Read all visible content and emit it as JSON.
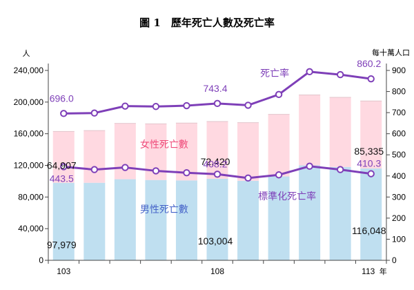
{
  "title": "圖 1　歷年死亡人數及死亡率",
  "chart_data": {
    "type": "bar",
    "categories": [
      "103",
      "",
      "",
      "",
      "",
      "108",
      "",
      "",
      "",
      "",
      "113"
    ],
    "x_tick_labels": [
      "103",
      "108",
      "113"
    ],
    "x_unit": "年",
    "y_left": {
      "unit": "人",
      "lim": [
        0,
        240000
      ],
      "ticks": [
        0,
        40000,
        80000,
        120000,
        160000,
        200000,
        240000
      ],
      "tick_labels": [
        "0",
        "40,000",
        "80,000",
        "120,000",
        "160,000",
        "200,000",
        "240,000"
      ]
    },
    "y_right": {
      "unit": "每十萬人口",
      "lim": [
        0,
        900
      ],
      "ticks": [
        0,
        100,
        200,
        300,
        400,
        500,
        600,
        700,
        800,
        900
      ],
      "tick_labels": [
        "0",
        "100",
        "200",
        "300",
        "400",
        "500",
        "600",
        "700",
        "800",
        "900"
      ]
    },
    "grid": false,
    "series": [
      {
        "name": "男性死亡數",
        "kind": "bar-stack",
        "axis": "left",
        "values": [
          97979,
          98000,
          102500,
          101500,
          101000,
          103004,
          100500,
          106000,
          120000,
          118000,
          116048
        ]
      },
      {
        "name": "女性死亡數",
        "kind": "bar-stack",
        "axis": "left",
        "values": [
          64907,
          66000,
          70500,
          71000,
          72500,
          72420,
          73500,
          78500,
          89000,
          88000,
          85335
        ]
      },
      {
        "name": "死亡率",
        "kind": "line",
        "axis": "right",
        "values": [
          696.0,
          698,
          731,
          729,
          733,
          743.4,
          735,
          786,
          894,
          880,
          860.2
        ]
      },
      {
        "name": "標準化死亡率",
        "kind": "line",
        "axis": "right",
        "values": [
          443.5,
          430,
          440,
          424,
          415,
          408.2,
          390,
          405,
          446,
          430,
          410.3
        ]
      }
    ],
    "data_labels": {
      "male": [
        "97,979",
        "103,004",
        "116,048"
      ],
      "female": [
        "64,907",
        "72,420",
        "85,335"
      ],
      "rate": [
        "696.0",
        "743.4",
        "860.2"
      ],
      "std": [
        "443.5",
        "408.2",
        "410.3"
      ]
    },
    "colors": {
      "male": "#bfdff0",
      "female": "#ffd9e1",
      "female_label": "#ef4b7a",
      "male_label": "#4563c8",
      "line": "#7e3fb8",
      "axis": "#444444"
    }
  }
}
